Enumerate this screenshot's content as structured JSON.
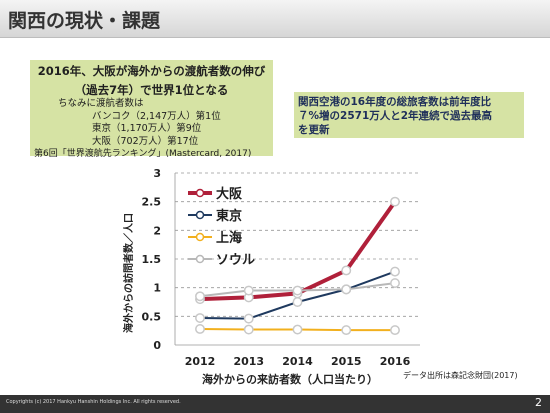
{
  "slide": {
    "title": "関西の現状・課題",
    "box1": {
      "heading_line1": "2016年、大阪が海外からの渡航者数の伸び",
      "heading_line2": "（過去7年）で世界1位となる",
      "line1": "ちなみに渡航者数は",
      "line2": "バンコク（2,147万人）第1位",
      "line3": "東京（1,170万人）第9位",
      "line4": "大阪（702万人）第17位",
      "line5": "第6回「世界渡航先ランキング」(Mastercard, 2017)"
    },
    "box2": {
      "line1": "関西空港の16年度の総旅客数は前年度比",
      "line2": "７%増の2571万人と2年連続で過去最高",
      "line3": "を更新"
    },
    "source": "データ出所は森記念財団(2017)",
    "copyright": "Copyrights (c) 2017 Hankyu Hanshin Holdings Inc. All rights reserved.",
    "page_number": "2"
  },
  "chart_data": {
    "type": "line",
    "x": [
      2012,
      2013,
      2014,
      2015,
      2016
    ],
    "x_tick_labels": [
      "2012",
      "2013",
      "2014",
      "2015",
      "2016"
    ],
    "y_tick_labels": [
      "0",
      "0.5",
      "1",
      "1.5",
      "2",
      "2.5",
      "3"
    ],
    "ylim": [
      0,
      3
    ],
    "xlabel": "海外からの来訪者数（人口当たり）",
    "ylabel": "海外からの訪問者数／人口",
    "grid": "horizontal dashed",
    "legend_position": "top-left",
    "series": [
      {
        "name": "大阪",
        "color": "#b0203a",
        "values": [
          0.8,
          0.83,
          0.9,
          1.3,
          2.5
        ]
      },
      {
        "name": "東京",
        "color": "#1f3a5f",
        "values": [
          0.47,
          0.46,
          0.75,
          0.97,
          1.28
        ]
      },
      {
        "name": "上海",
        "color": "#f2b01e",
        "values": [
          0.28,
          0.27,
          0.27,
          0.26,
          0.26
        ]
      },
      {
        "name": "ソウル",
        "color": "#b8b8b8",
        "values": [
          0.85,
          0.95,
          0.95,
          0.97,
          1.08
        ]
      }
    ]
  }
}
